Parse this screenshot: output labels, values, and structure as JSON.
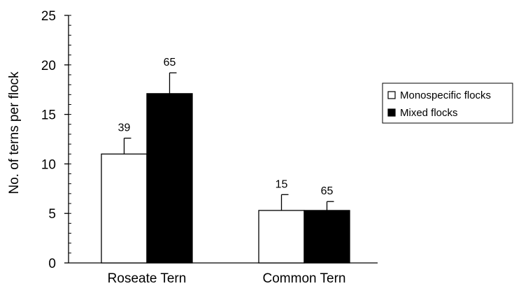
{
  "chart_data": {
    "type": "bar",
    "title": "",
    "xlabel": "",
    "ylabel": "No. of terns per flock",
    "ylim": [
      0,
      25
    ],
    "yticks": [
      0,
      5,
      10,
      15,
      20,
      25
    ],
    "grid": false,
    "legend_position": "right",
    "categories": [
      "Roseate Tern",
      "Common Tern"
    ],
    "series": [
      {
        "name": "Monospecific flocks",
        "color": "#ffffff",
        "values": [
          11.0,
          5.3
        ],
        "errors": [
          1.6,
          1.6
        ],
        "labels": [
          "39",
          "15"
        ]
      },
      {
        "name": "Mixed flocks",
        "color": "#000000",
        "values": [
          17.1,
          5.3
        ],
        "errors": [
          2.1,
          0.9
        ],
        "labels": [
          "65",
          "65"
        ]
      }
    ]
  }
}
